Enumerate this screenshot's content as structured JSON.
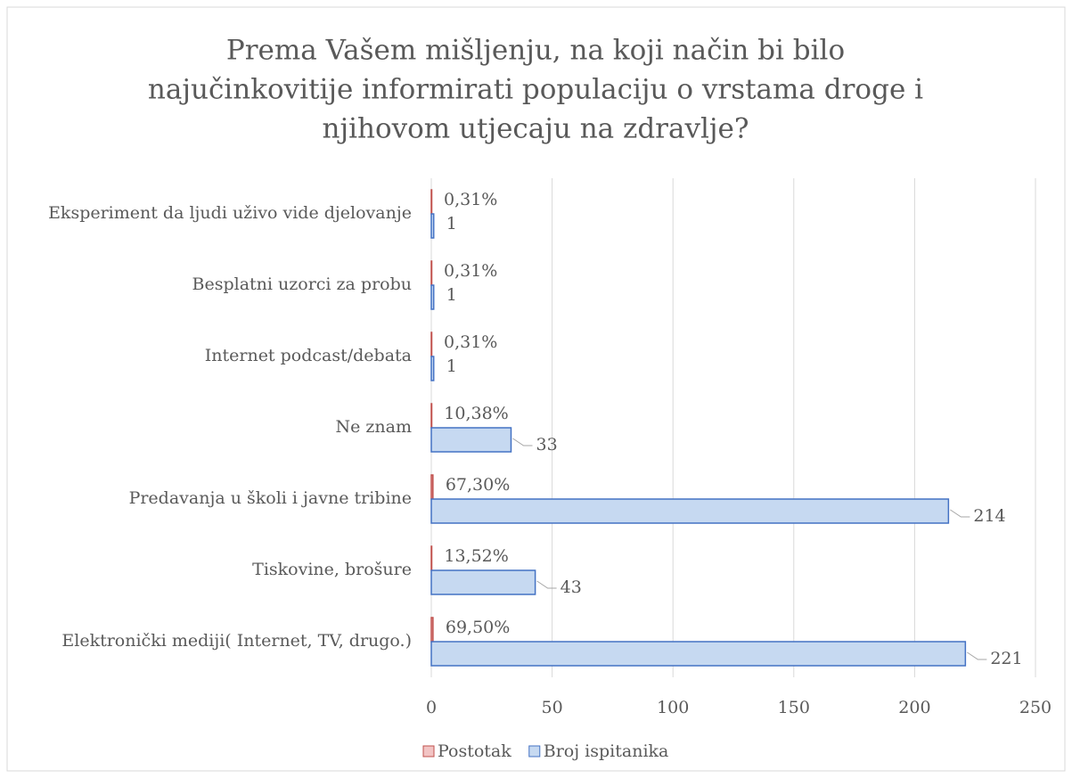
{
  "chart_data": {
    "type": "bar",
    "orientation": "horizontal",
    "title": [
      "Prema Vašem mišljenju, na koji način bi bilo",
      "najučinkovitije informirati populaciju o vrstama droge i",
      "njihovom utjecaju na zdravlje?"
    ],
    "categories": [
      "Eksperiment da ljudi uživo vide djelovanje",
      "Besplatni uzorci za probu",
      "Internet podcast/debata",
      "Ne znam",
      "Predavanja u školi i javne tribine",
      "Tiskovine, brošure",
      "Elektronički mediji( Internet, TV, drugo.)"
    ],
    "series": [
      {
        "name": "Postotak",
        "color": "#f2c4c4",
        "stroke": "#c0504d",
        "values": [
          0.0031,
          0.0031,
          0.0031,
          0.1038,
          0.673,
          0.1352,
          0.695
        ],
        "value_labels": [
          "0,31%",
          "0,31%",
          "0,31%",
          "10,38%",
          "67,30%",
          "13,52%",
          "69,50%"
        ]
      },
      {
        "name": "Broj ispitanika",
        "color": "#c6d9f1",
        "stroke": "#4472c4",
        "values": [
          1,
          1,
          1,
          33,
          214,
          43,
          221
        ]
      }
    ],
    "xlim": [
      0,
      250
    ],
    "xticks": [
      0,
      50,
      100,
      150,
      200,
      250
    ],
    "grid": true,
    "legend": "bottom"
  }
}
